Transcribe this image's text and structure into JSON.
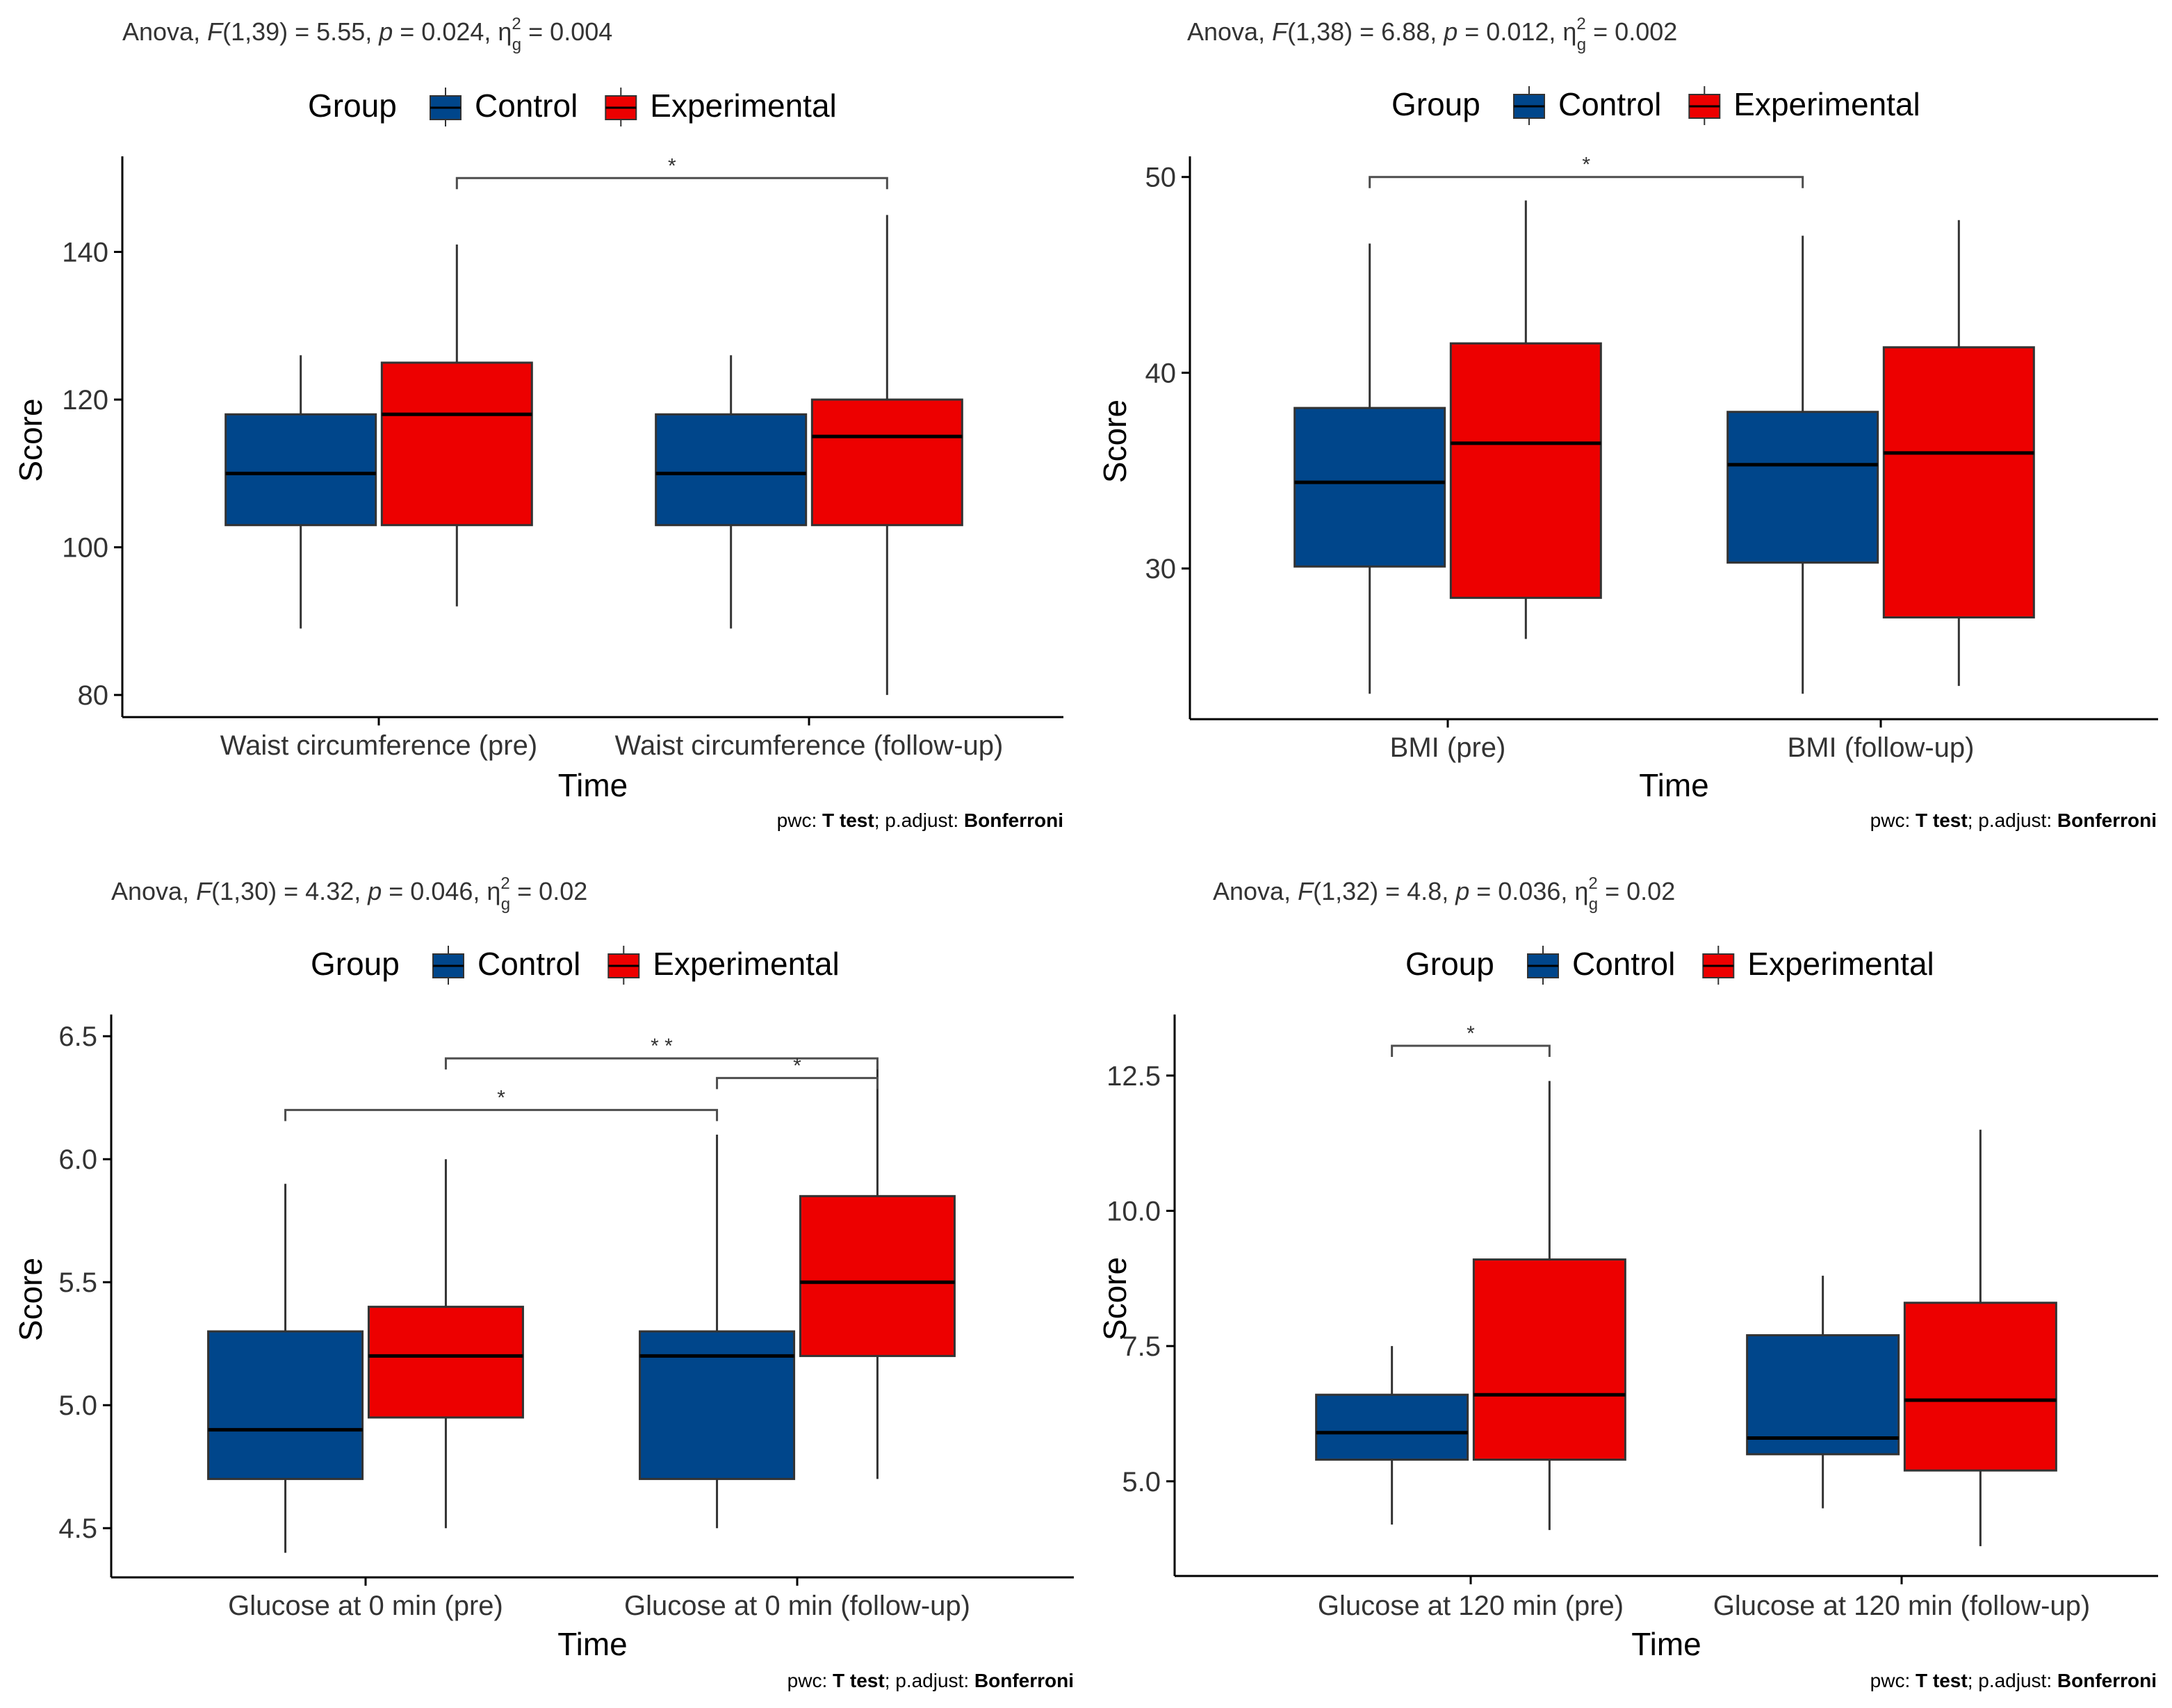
{
  "colors": {
    "control": "#00468B",
    "experimental": "#ED0000",
    "axis": "#000000",
    "bracket": "#4d4d4d"
  },
  "chart_data": [
    {
      "type": "boxplot",
      "anova": {
        "prefix": "Anova, ",
        "stat": "F",
        "df": "(1,39)",
        "F_value": " = 5.55, ",
        "p_label": "p",
        "p_value": " = 0.024, ",
        "eta": "η",
        "eta_sup": "2",
        "eta_sub": "g",
        "eta_value": " = 0.004"
      },
      "legend": {
        "title": "Group",
        "entries": [
          "Control",
          "Experimental"
        ]
      },
      "xlabel": "Time",
      "ylabel": "Score",
      "yticks": [
        "80",
        "100",
        "120",
        "140"
      ],
      "ylim": [
        77,
        152
      ],
      "categories": [
        "Waist circumference (pre)",
        "Waist circumference (follow-up)"
      ],
      "series": [
        {
          "name": "Control",
          "boxes": [
            {
              "min": 89,
              "q1": 103,
              "median": 110,
              "q3": 118,
              "max": 126
            },
            {
              "min": 89,
              "q1": 103,
              "median": 110,
              "q3": 118,
              "max": 126
            }
          ]
        },
        {
          "name": "Experimental",
          "boxes": [
            {
              "min": 92,
              "q1": 103,
              "median": 118,
              "q3": 125,
              "max": 141
            },
            {
              "min": 80,
              "q1": 103,
              "median": 115,
              "q3": 120,
              "max": 145
            }
          ]
        }
      ],
      "significance": [
        {
          "from": [
            0,
            1
          ],
          "to": [
            1,
            1
          ],
          "y": 150,
          "label": "*"
        }
      ],
      "caption": {
        "prefix": "pwc: ",
        "test": "T test",
        "mid": "; p.adjust: ",
        "method": "Bonferroni"
      }
    },
    {
      "type": "boxplot",
      "anova": {
        "prefix": "Anova, ",
        "stat": "F",
        "df": "(1,38)",
        "F_value": " = 6.88, ",
        "p_label": "p",
        "p_value": " = 0.012, ",
        "eta": "η",
        "eta_sup": "2",
        "eta_sub": "g",
        "eta_value": " = 0.002"
      },
      "legend": {
        "title": "Group",
        "entries": [
          "Control",
          "Experimental"
        ]
      },
      "xlabel": "Time",
      "ylabel": "Score",
      "yticks": [
        "30",
        "40",
        "50"
      ],
      "ylim": [
        22.3,
        50.7
      ],
      "categories": [
        "BMI (pre)",
        "BMI (follow-up)"
      ],
      "series": [
        {
          "name": "Control",
          "boxes": [
            {
              "min": 23.6,
              "q1": 30.1,
              "median": 34.4,
              "q3": 38.2,
              "max": 46.6
            },
            {
              "min": 23.6,
              "q1": 30.3,
              "median": 35.3,
              "q3": 38.0,
              "max": 47.0
            }
          ]
        },
        {
          "name": "Experimental",
          "boxes": [
            {
              "min": 26.4,
              "q1": 28.5,
              "median": 36.4,
              "q3": 41.5,
              "max": 48.8
            },
            {
              "min": 24.0,
              "q1": 27.5,
              "median": 35.9,
              "q3": 41.3,
              "max": 47.8
            }
          ]
        }
      ],
      "significance": [
        {
          "from": [
            0,
            0
          ],
          "to": [
            1,
            0
          ],
          "y": 50.0,
          "label": "*"
        }
      ],
      "caption": {
        "prefix": "pwc: ",
        "test": "T test",
        "mid": "; p.adjust: ",
        "method": "Bonferroni"
      }
    },
    {
      "type": "boxplot",
      "anova": {
        "prefix": "Anova, ",
        "stat": "F",
        "df": "(1,30)",
        "F_value": " = 4.32, ",
        "p_label": "p",
        "p_value": " = 0.046, ",
        "eta": "η",
        "eta_sup": "2",
        "eta_sub": "g",
        "eta_value": " = 0.02"
      },
      "legend": {
        "title": "Group",
        "entries": [
          "Control",
          "Experimental"
        ]
      },
      "xlabel": "Time",
      "ylabel": "Score",
      "yticks": [
        "4.5",
        "5.0",
        "5.5",
        "6.0",
        "6.5"
      ],
      "ylim": [
        4.3,
        6.56
      ],
      "categories": [
        "Glucose at 0 min (pre)",
        "Glucose at 0 min (follow-up)"
      ],
      "series": [
        {
          "name": "Control",
          "boxes": [
            {
              "min": 4.4,
              "q1": 4.7,
              "median": 4.9,
              "q3": 5.3,
              "max": 5.9
            },
            {
              "min": 4.5,
              "q1": 4.7,
              "median": 5.2,
              "q3": 5.3,
              "max": 6.1
            }
          ]
        },
        {
          "name": "Experimental",
          "boxes": [
            {
              "min": 4.5,
              "q1": 4.95,
              "median": 5.2,
              "q3": 5.4,
              "max": 6.0
            },
            {
              "min": 4.7,
              "q1": 5.2,
              "median": 5.5,
              "q3": 5.85,
              "max": 6.4
            }
          ]
        }
      ],
      "significance": [
        {
          "from": [
            0,
            1
          ],
          "to": [
            1,
            1
          ],
          "y": 6.41,
          "label": "* *"
        },
        {
          "from": [
            1,
            0
          ],
          "to": [
            1,
            1
          ],
          "y": 6.33,
          "label": "*"
        },
        {
          "from": [
            0,
            0
          ],
          "to": [
            1,
            0
          ],
          "y": 6.2,
          "label": "*"
        }
      ],
      "caption": {
        "prefix": "pwc: ",
        "test": "T test",
        "mid": "; p.adjust: ",
        "method": "Bonferroni"
      }
    },
    {
      "type": "boxplot",
      "anova": {
        "prefix": "Anova, ",
        "stat": "F",
        "df": "(1,32)",
        "F_value": " = 4.8, ",
        "p_label": "p",
        "p_value": " = 0.036, ",
        "eta": "η",
        "eta_sup": "2",
        "eta_sub": "g",
        "eta_value": " = 0.02"
      },
      "legend": {
        "title": "Group",
        "entries": [
          "Control",
          "Experimental"
        ]
      },
      "xlabel": "Time",
      "ylabel": "Score",
      "yticks": [
        "5.0",
        "7.5",
        "10.0",
        "12.5"
      ],
      "ylim": [
        3.25,
        13.5
      ],
      "categories": [
        "Glucose at 120 min (pre)",
        "Glucose at 120 min (follow-up)"
      ],
      "series": [
        {
          "name": "Control",
          "boxes": [
            {
              "min": 4.2,
              "q1": 5.4,
              "median": 5.9,
              "q3": 6.6,
              "max": 7.5
            },
            {
              "min": 4.5,
              "q1": 5.5,
              "median": 5.8,
              "q3": 7.7,
              "max": 8.8
            }
          ]
        },
        {
          "name": "Experimental",
          "boxes": [
            {
              "min": 4.1,
              "q1": 5.4,
              "median": 6.6,
              "q3": 9.1,
              "max": 12.4
            },
            {
              "min": 3.8,
              "q1": 5.2,
              "median": 6.5,
              "q3": 8.3,
              "max": 11.5
            }
          ]
        }
      ],
      "significance": [
        {
          "from": [
            0,
            0
          ],
          "to": [
            0,
            1
          ],
          "y": 13.05,
          "label": "*"
        }
      ],
      "caption": {
        "prefix": "pwc: ",
        "test": "T test",
        "mid": "; p.adjust: ",
        "method": "Bonferroni"
      }
    }
  ]
}
